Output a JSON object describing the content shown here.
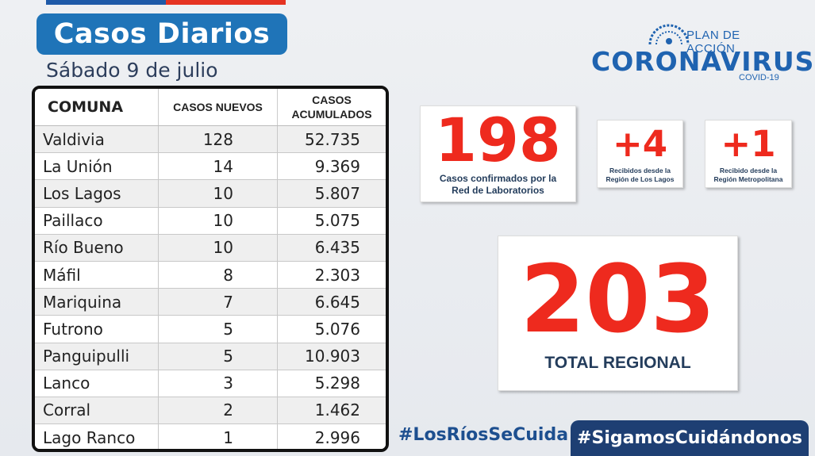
{
  "title": "Casos Diarios",
  "date": "Sábado 9  de julio",
  "table": {
    "headers": [
      "COMUNA",
      "CASOS NUEVOS",
      "CASOS ACUMULADOS"
    ],
    "rows": [
      {
        "comuna": "Valdivia",
        "nuevos": "128",
        "acumulados": "52.735"
      },
      {
        "comuna": "La Unión",
        "nuevos": "14",
        "acumulados": "9.369"
      },
      {
        "comuna": "Los Lagos",
        "nuevos": "10",
        "acumulados": "5.807"
      },
      {
        "comuna": "Paillaco",
        "nuevos": "10",
        "acumulados": "5.075"
      },
      {
        "comuna": "Río Bueno",
        "nuevos": "10",
        "acumulados": "6.435"
      },
      {
        "comuna": "Máfil",
        "nuevos": "8",
        "acumulados": "2.303"
      },
      {
        "comuna": "Mariquina",
        "nuevos": "7",
        "acumulados": "6.645"
      },
      {
        "comuna": "Futrono",
        "nuevos": "5",
        "acumulados": "5.076"
      },
      {
        "comuna": "Panguipulli",
        "nuevos": "5",
        "acumulados": "10.903"
      },
      {
        "comuna": "Lanco",
        "nuevos": "3",
        "acumulados": "5.298"
      },
      {
        "comuna": "Corral",
        "nuevos": "2",
        "acumulados": "1.462"
      },
      {
        "comuna": "Lago Ranco",
        "nuevos": "1",
        "acumulados": "2.996"
      }
    ]
  },
  "logo": {
    "plan": "PLAN DE ACCIÓN",
    "name": "CORONAVIRUS",
    "sub": "COVID-19"
  },
  "stats": {
    "lab": {
      "value": "198",
      "caption_1": "Casos confirmados por la",
      "caption_2": "Red de Laboratorios"
    },
    "los_lagos": {
      "value": "+4",
      "caption_1": "Recibidos desde la",
      "caption_2": "Región de Los Lagos"
    },
    "metropolitana": {
      "value": "+1",
      "caption_1": "Recibido desde la",
      "caption_2": "Región Metropolitana"
    },
    "total": {
      "value": "203",
      "caption": "TOTAL REGIONAL"
    }
  },
  "hashtags": {
    "first": "#LosRíosSeCuida",
    "second": "#SigamosCuidándonos"
  },
  "colors": {
    "accent_blue": "#1f74b8",
    "brand_blue": "#1f63b0",
    "highlight_red": "#ee2a1e",
    "dark_navy": "#1e3f73"
  }
}
